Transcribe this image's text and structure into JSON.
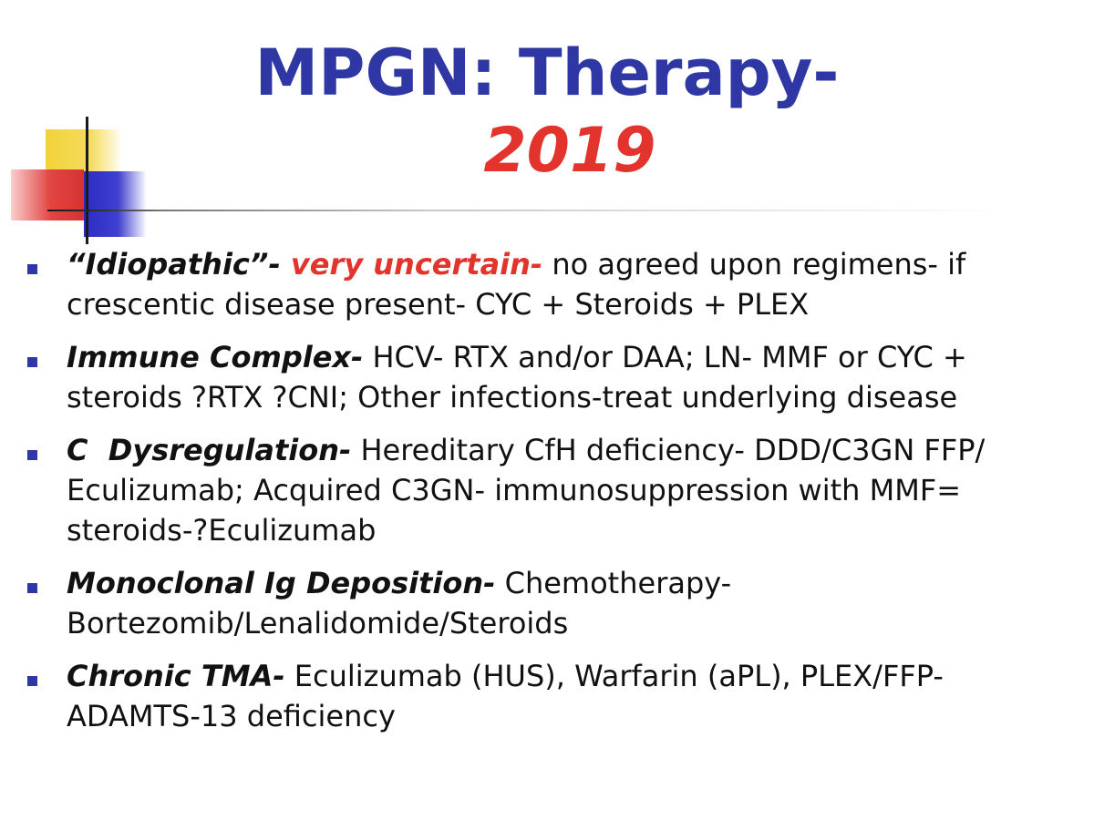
{
  "title": {
    "line1": "MPGN: Therapy-",
    "line2": "2019"
  },
  "colors": {
    "title_blue": "#2e37a3",
    "accent_red": "#e3332d",
    "bullet_blue": "#2e37a3"
  },
  "bullets": [
    {
      "lead": "“Idiopathic”-",
      "accent": " very uncertain-",
      "text": " no agreed upon regimens- if crescentic disease present- CYC + Steroids + PLEX"
    },
    {
      "lead": "Immune Complex-",
      "text": " HCV- RTX and/or DAA; LN- MMF or CYC + steroids ?RTX ?CNI; Other infections-treat underlying disease"
    },
    {
      "lead": "C  Dysregulation-",
      "text": " Hereditary CfH deficiency- DDD/C3GN FFP/ Eculizumab; Acquired C3GN- immunosuppression with MMF= steroids-?Eculizumab"
    },
    {
      "lead": "Monoclonal Ig Deposition-",
      "text": " Chemotherapy- Bortezomib/Lenalidomide/Steroids"
    },
    {
      "lead": "Chronic TMA-",
      "text": " Eculizumab (HUS), Warfarin (aPL), PLEX/FFP- ADAMTS-13 deficiency"
    }
  ]
}
